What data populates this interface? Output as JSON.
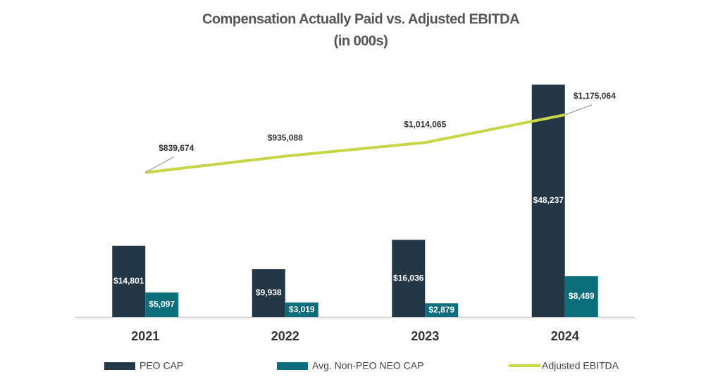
{
  "chart_data": {
    "type": "bar-line",
    "title": "Compensation Actually Paid vs. Adjusted EBITDA",
    "subtitle": "(in 000s)",
    "categories": [
      "2021",
      "2022",
      "2023",
      "2024"
    ],
    "series": [
      {
        "name": "PEO CAP",
        "color": "#243746",
        "type": "bar",
        "values": [
          14801,
          9938,
          16036,
          48237
        ],
        "value_labels": [
          "$14,801",
          "$9,938",
          "$16,036",
          "$48,237"
        ]
      },
      {
        "name": "Avg. Non-PEO NEO CAP",
        "color": "#0b6e7a",
        "type": "bar",
        "values": [
          5097,
          3019,
          2879,
          8489
        ],
        "value_labels": [
          "$5,097",
          "$3,019",
          "$2,879",
          "$8,489"
        ]
      },
      {
        "name": "Adjusted EBITDA",
        "color": "#c8d645",
        "type": "line",
        "axis": "y2",
        "values": [
          839674,
          935088,
          1014065,
          1175064
        ],
        "value_labels": [
          "$839,674",
          "$935,088",
          "$1,014,065",
          "$1,175,064"
        ]
      }
    ],
    "ylim": [
      0,
      50000
    ],
    "y2lim": [
      0,
      1400000
    ],
    "legend": "bottom"
  }
}
